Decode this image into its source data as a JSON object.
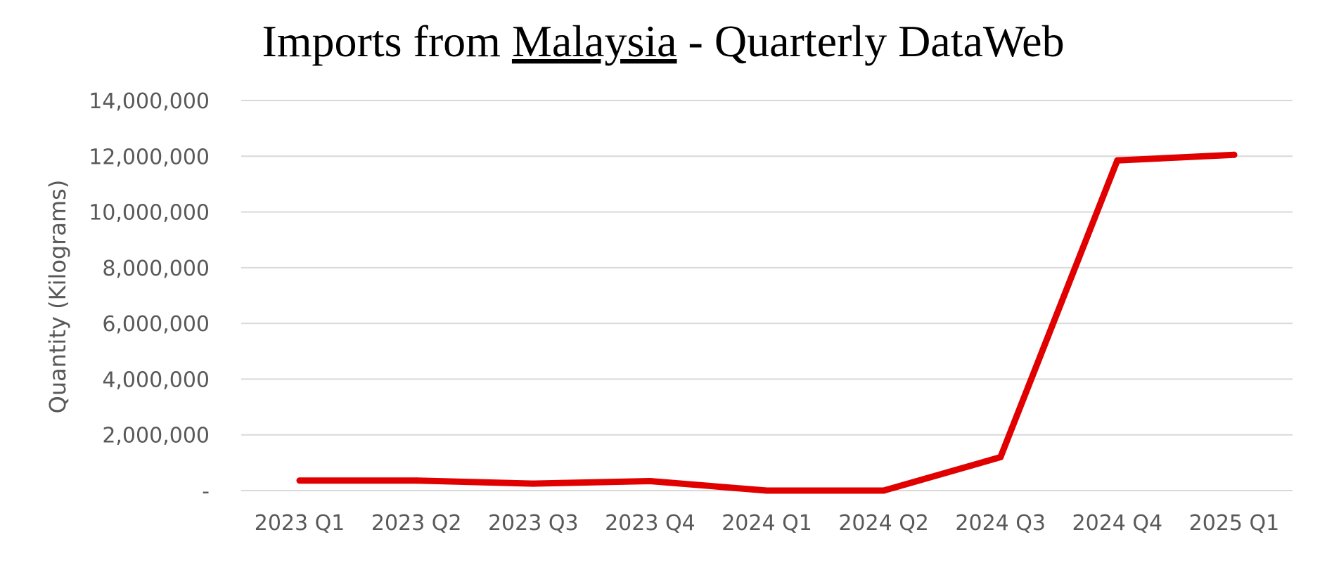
{
  "chart_data": {
    "type": "line",
    "title": {
      "prefix": "Imports from ",
      "country": "Malaysia",
      "suffix": " - Quarterly DataWeb"
    },
    "xlabel": "",
    "ylabel": "Quantity (Kilograms)",
    "categories": [
      "2023 Q1",
      "2023 Q2",
      "2023 Q3",
      "2023 Q4",
      "2024 Q1",
      "2024 Q2",
      "2024 Q3",
      "2024 Q4",
      "2025 Q1"
    ],
    "series": [
      {
        "color": "#E00000",
        "values": [
          360000,
          360000,
          250000,
          340000,
          0,
          0,
          1200000,
          11850000,
          12050000
        ]
      }
    ],
    "ylim": [
      0,
      14000000
    ],
    "yticks": [
      0,
      2000000,
      4000000,
      6000000,
      8000000,
      10000000,
      12000000,
      14000000
    ],
    "ytick_labels": [
      "-",
      "2,000,000",
      "4,000,000",
      "6,000,000",
      "8,000,000",
      "10,000,000",
      "12,000,000",
      "14,000,000"
    ],
    "grid": true,
    "legend": "none",
    "gridline_color": "#D9D9D9",
    "axis_text_color": "#595959"
  }
}
